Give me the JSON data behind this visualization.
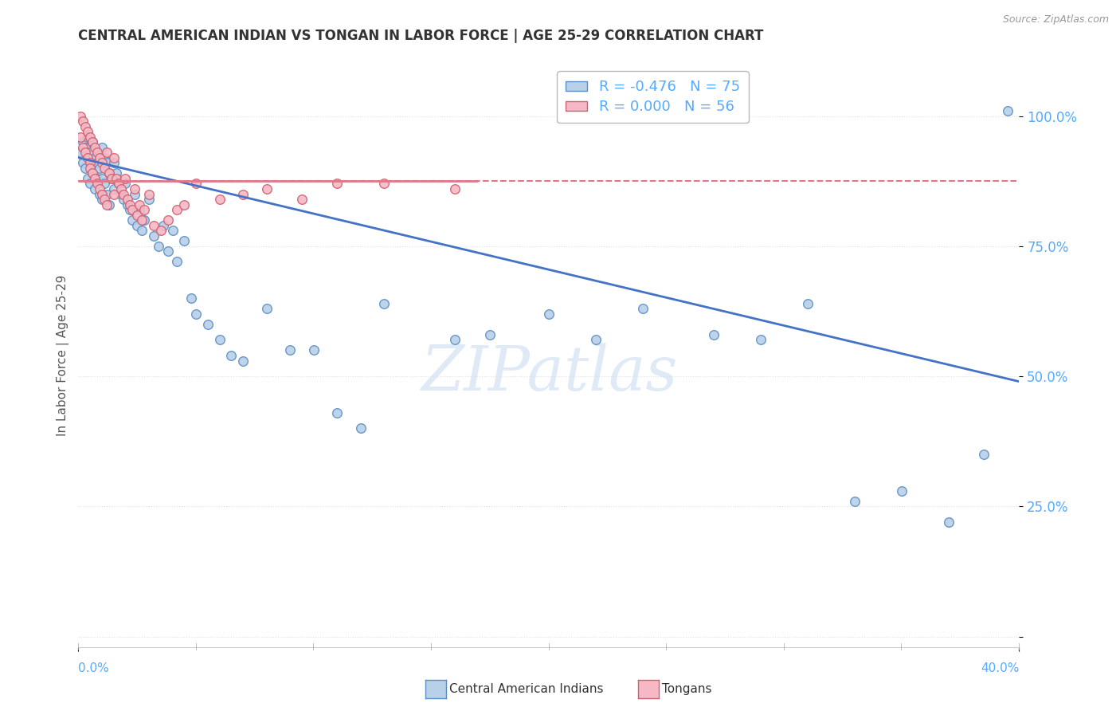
{
  "title": "CENTRAL AMERICAN INDIAN VS TONGAN IN LABOR FORCE | AGE 25-29 CORRELATION CHART",
  "source": "Source: ZipAtlas.com",
  "ylabel": "In Labor Force | Age 25-29",
  "blue_R": -0.476,
  "blue_N": 75,
  "pink_R": 0.0,
  "pink_N": 56,
  "blue_color": "#b8d0e8",
  "pink_color": "#f5b8c4",
  "blue_edge_color": "#5b8ec4",
  "pink_edge_color": "#d06070",
  "blue_line_color": "#4472c4",
  "pink_line_color": "#e07888",
  "watermark_color": "#ccddf0",
  "xlim": [
    0.0,
    0.4
  ],
  "ylim": [
    -0.02,
    1.1
  ],
  "ytick_vals": [
    0.0,
    0.25,
    0.5,
    0.75,
    1.0
  ],
  "ytick_labels": [
    "",
    "25.0%",
    "50.0%",
    "75.0%",
    "100.0%"
  ],
  "blue_line_x0": 0.0,
  "blue_line_y0": 0.92,
  "blue_line_x1": 0.4,
  "blue_line_y1": 0.49,
  "pink_line_y": 0.875,
  "background_color": "#ffffff",
  "grid_color": "#e0e0e0",
  "title_color": "#333333",
  "source_color": "#999999",
  "axis_tick_color": "#55aaff",
  "ylabel_color": "#555555",
  "blue_scatter_x": [
    0.001,
    0.002,
    0.002,
    0.003,
    0.003,
    0.004,
    0.004,
    0.005,
    0.005,
    0.006,
    0.006,
    0.007,
    0.007,
    0.008,
    0.008,
    0.009,
    0.009,
    0.01,
    0.01,
    0.01,
    0.011,
    0.011,
    0.012,
    0.012,
    0.013,
    0.013,
    0.014,
    0.015,
    0.015,
    0.016,
    0.017,
    0.018,
    0.019,
    0.02,
    0.021,
    0.022,
    0.023,
    0.024,
    0.025,
    0.026,
    0.027,
    0.028,
    0.03,
    0.032,
    0.034,
    0.036,
    0.038,
    0.04,
    0.042,
    0.045,
    0.048,
    0.05,
    0.055,
    0.06,
    0.065,
    0.07,
    0.08,
    0.09,
    0.1,
    0.11,
    0.12,
    0.13,
    0.16,
    0.175,
    0.2,
    0.22,
    0.24,
    0.27,
    0.29,
    0.31,
    0.33,
    0.35,
    0.37,
    0.385,
    0.395
  ],
  "blue_scatter_y": [
    0.93,
    0.95,
    0.91,
    0.94,
    0.9,
    0.96,
    0.88,
    0.93,
    0.87,
    0.95,
    0.89,
    0.92,
    0.86,
    0.91,
    0.88,
    0.9,
    0.85,
    0.94,
    0.88,
    0.84,
    0.92,
    0.87,
    0.91,
    0.85,
    0.89,
    0.83,
    0.88,
    0.91,
    0.86,
    0.89,
    0.87,
    0.85,
    0.84,
    0.87,
    0.83,
    0.82,
    0.8,
    0.85,
    0.79,
    0.82,
    0.78,
    0.8,
    0.84,
    0.77,
    0.75,
    0.79,
    0.74,
    0.78,
    0.72,
    0.76,
    0.65,
    0.62,
    0.6,
    0.57,
    0.54,
    0.53,
    0.63,
    0.55,
    0.55,
    0.43,
    0.4,
    0.64,
    0.57,
    0.58,
    0.62,
    0.57,
    0.63,
    0.58,
    0.57,
    0.64,
    0.26,
    0.28,
    0.22,
    0.35,
    1.01
  ],
  "pink_scatter_x": [
    0.001,
    0.001,
    0.002,
    0.002,
    0.003,
    0.003,
    0.004,
    0.004,
    0.005,
    0.005,
    0.005,
    0.006,
    0.006,
    0.007,
    0.007,
    0.008,
    0.008,
    0.009,
    0.009,
    0.01,
    0.01,
    0.011,
    0.011,
    0.012,
    0.012,
    0.013,
    0.014,
    0.015,
    0.015,
    0.016,
    0.017,
    0.018,
    0.019,
    0.02,
    0.021,
    0.022,
    0.023,
    0.024,
    0.025,
    0.026,
    0.027,
    0.028,
    0.03,
    0.032,
    0.035,
    0.038,
    0.042,
    0.045,
    0.05,
    0.06,
    0.07,
    0.08,
    0.095,
    0.11,
    0.13,
    0.16
  ],
  "pink_scatter_y": [
    1.0,
    0.96,
    0.99,
    0.94,
    0.98,
    0.93,
    0.97,
    0.92,
    0.96,
    0.91,
    0.9,
    0.95,
    0.89,
    0.94,
    0.88,
    0.93,
    0.87,
    0.92,
    0.86,
    0.91,
    0.85,
    0.9,
    0.84,
    0.93,
    0.83,
    0.89,
    0.88,
    0.92,
    0.85,
    0.88,
    0.87,
    0.86,
    0.85,
    0.88,
    0.84,
    0.83,
    0.82,
    0.86,
    0.81,
    0.83,
    0.8,
    0.82,
    0.85,
    0.79,
    0.78,
    0.8,
    0.82,
    0.83,
    0.87,
    0.84,
    0.85,
    0.86,
    0.84,
    0.87,
    0.87,
    0.86
  ]
}
